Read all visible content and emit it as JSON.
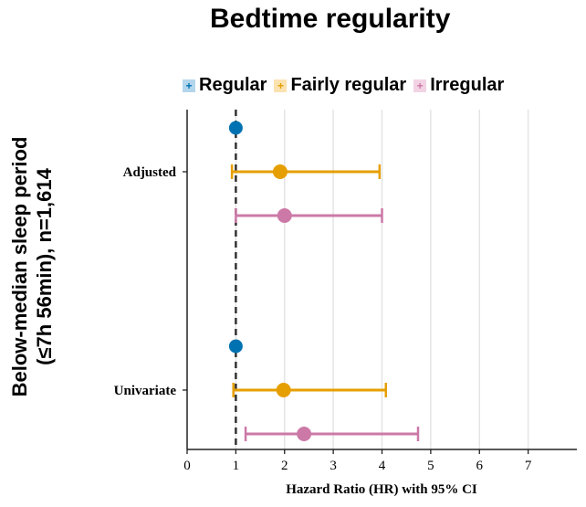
{
  "chart_data": {
    "type": "forest",
    "title": "Bedtime regularity",
    "ylabel_lines": [
      "Below-median sleep period",
      "(≤7h 56min), n=1,614"
    ],
    "xlabel": "Hazard Ratio (HR) with 95% CI",
    "xlim": [
      0,
      8
    ],
    "xticks": [
      0,
      1,
      2,
      3,
      4,
      5,
      6,
      7
    ],
    "reference_line": 1,
    "grid": "vertical",
    "legend_position": "top",
    "categories": [
      "Adjusted",
      "Univariate"
    ],
    "series": [
      {
        "name": "Regular",
        "color": "#0072B2",
        "legend_bg": "#b3d6ec",
        "points": [
          {
            "hr": 1.0,
            "lo": 1.0,
            "hi": 1.0
          },
          {
            "hr": 1.0,
            "lo": 1.0,
            "hi": 1.0
          }
        ]
      },
      {
        "name": "Fairly regular",
        "color": "#E69F00",
        "legend_bg": "#fbe2b0",
        "points": [
          {
            "hr": 1.91,
            "lo": 0.92,
            "hi": 3.95
          },
          {
            "hr": 1.98,
            "lo": 0.95,
            "hi": 4.08
          }
        ]
      },
      {
        "name": "Irregular",
        "color": "#CC79A7",
        "legend_bg": "#f2d3e4",
        "points": [
          {
            "hr": 2.0,
            "lo": 1.0,
            "hi": 4.0
          },
          {
            "hr": 2.4,
            "lo": 1.2,
            "hi": 4.74
          }
        ]
      }
    ]
  }
}
